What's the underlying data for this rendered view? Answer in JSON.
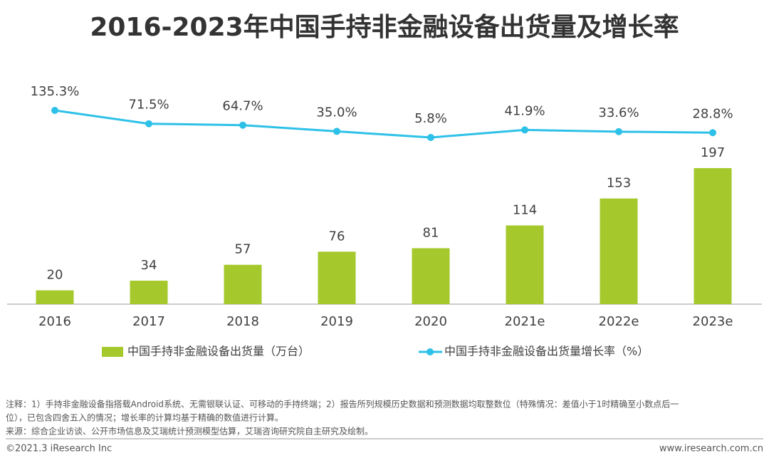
{
  "chart_data": {
    "type": "bar",
    "title": "2016-2023年中国手持非金融设备出货量及增长率",
    "categories": [
      "2016",
      "2017",
      "2018",
      "2019",
      "2020",
      "2021e",
      "2022e",
      "2023e"
    ],
    "series": [
      {
        "name": "中国手持非金融设备出货量（万台）",
        "type": "bar",
        "color": "#a5c92c",
        "values": [
          20,
          34,
          57,
          76,
          81,
          114,
          153,
          197
        ]
      },
      {
        "name": "中国手持非金融设备出货量增长率（%）",
        "type": "line",
        "axis": "y2",
        "color": "#2ec1e8",
        "values": [
          135.3,
          71.5,
          64.7,
          35.0,
          5.8,
          41.9,
          33.6,
          28.8
        ],
        "value_labels": [
          "135.3%",
          "71.5%",
          "64.7%",
          "35.0%",
          "5.8%",
          "41.9%",
          "33.6%",
          "28.8%"
        ]
      }
    ],
    "notes": [
      "注释：1）手持非金融设备指搭载Android系统、无需银联认证、可移动的手持终端；2）报告所列规模历史数据和预测数据均取整数位（特殊情况：差值小于1时精确至小数点后一",
      "位），已包含四舍五入的情况；增长率的计算均基于精确的数值进行计算。",
      "来源：综合企业访谈、公开市场信息及艾瑞统计预测模型估算，艾瑞咨询研究院自主研究及绘制。"
    ],
    "copyright": "©2021.3 iResearch Inc",
    "website": "www.iresearch.com.cn"
  }
}
